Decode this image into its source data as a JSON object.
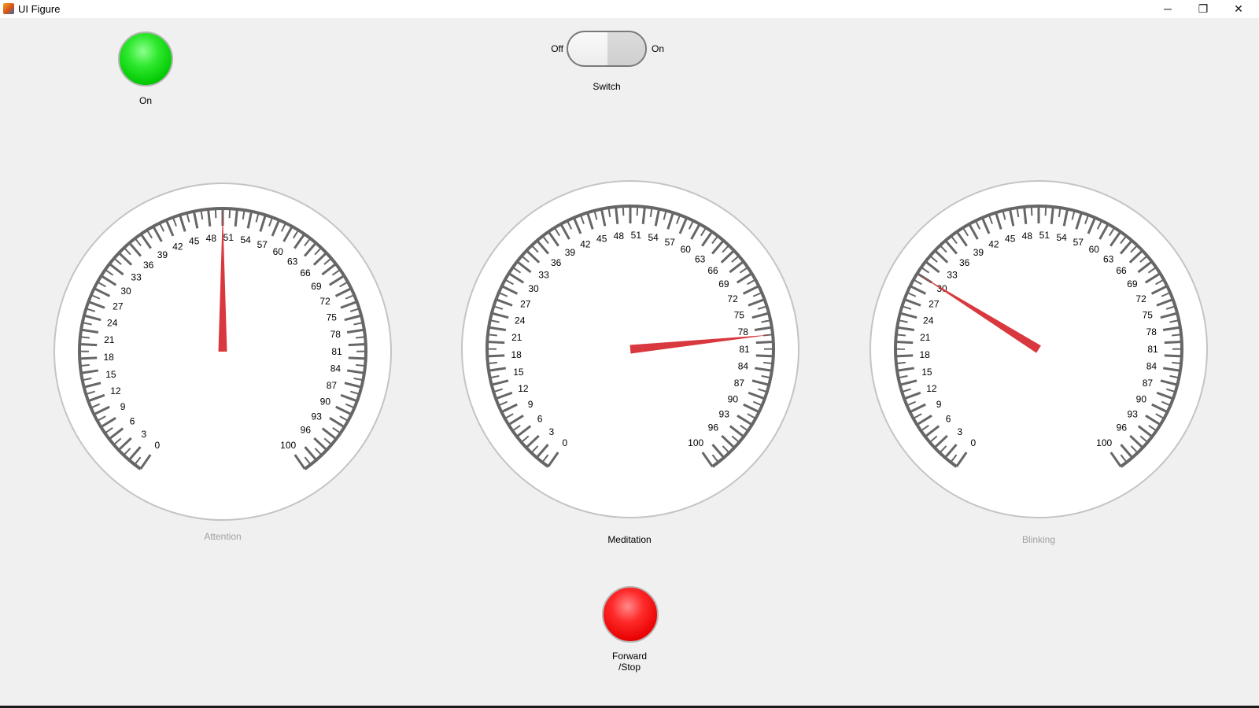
{
  "window": {
    "title": "UI Figure",
    "controls": [
      "─",
      "❐",
      "✕"
    ]
  },
  "lamp_on": {
    "label": "On",
    "color": "#00e000"
  },
  "switch": {
    "off_label": "Off",
    "on_label": "On",
    "label": "Switch",
    "state": "Off"
  },
  "gauges": [
    {
      "title": "Attention",
      "value": 50,
      "min": 0,
      "max": 100,
      "enabled": false
    },
    {
      "title": "Meditation",
      "value": 79,
      "min": 0,
      "max": 100,
      "enabled": true
    },
    {
      "title": "Blinking",
      "value": 30,
      "min": 0,
      "max": 100,
      "enabled": false
    }
  ],
  "gauge_ticks": [
    "0",
    "3",
    "6",
    "9",
    "12",
    "15",
    "18",
    "21",
    "24",
    "27",
    "30",
    "33",
    "36",
    "39",
    "42",
    "45",
    "48",
    "51",
    "54",
    "57",
    "60",
    "63",
    "66",
    "69",
    "72",
    "75",
    "78",
    "81",
    "84",
    "87",
    "90",
    "93",
    "96",
    "100"
  ],
  "lamp_forward": {
    "label_line1": "Forward",
    "label_line2": "/Stop",
    "color": "#ff0000"
  },
  "colors": {
    "needle": "#d9393e",
    "scale": "#666666",
    "disabled_text": "#a0a0a0"
  }
}
